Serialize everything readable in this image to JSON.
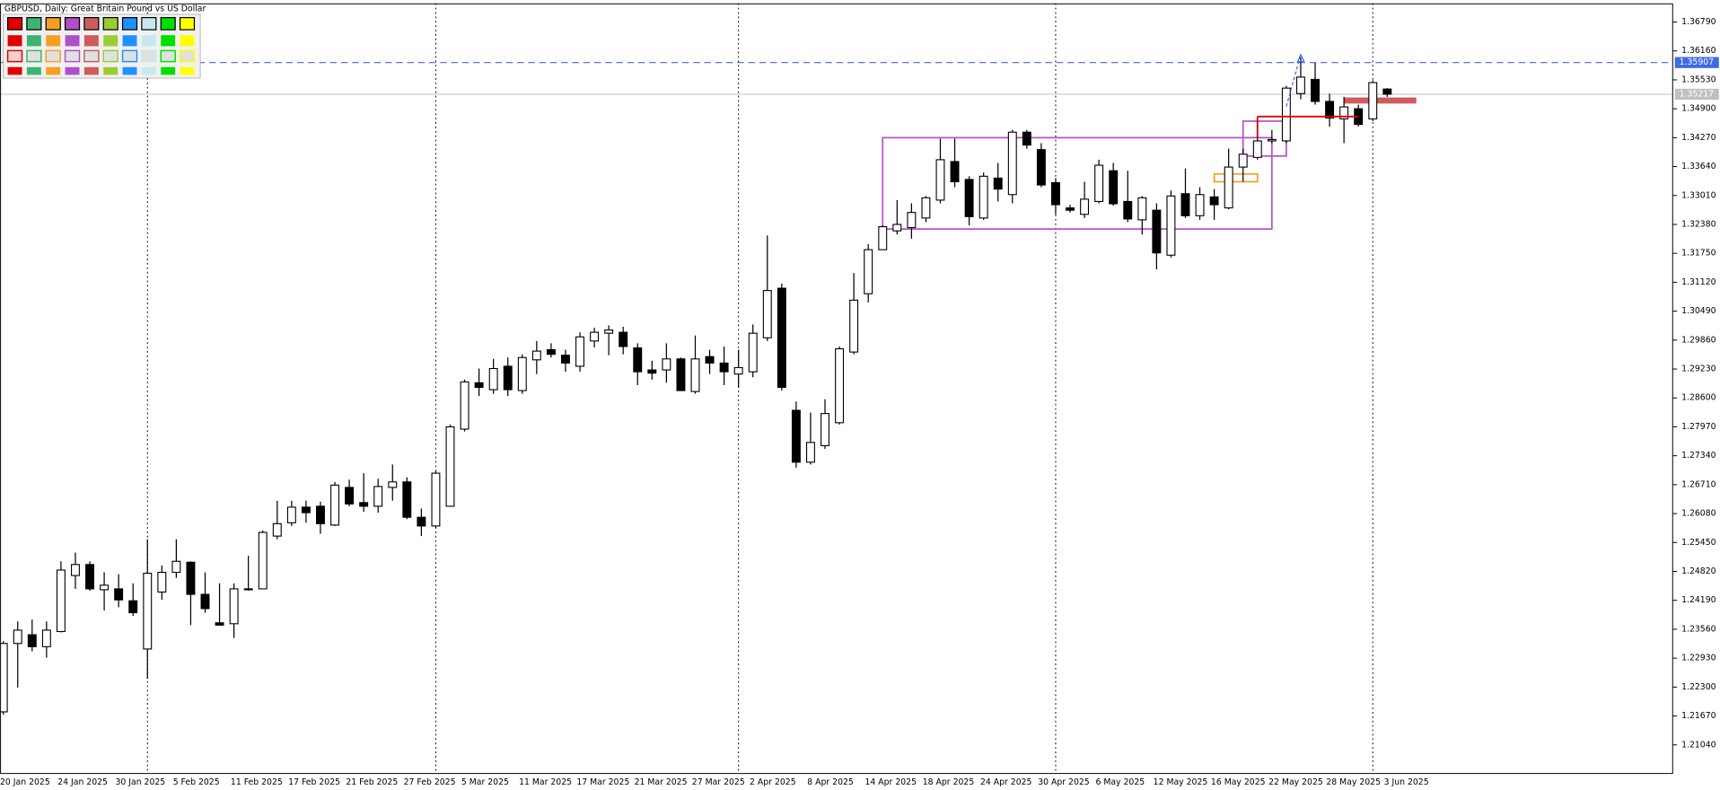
{
  "chart_data": {
    "type": "candlestick",
    "title": "GBPUSD, Daily:  Great Britain Pound vs US Dollar",
    "categories": [
      "20 Jan 2025",
      null,
      null,
      null,
      "24 Jan 2025",
      null,
      null,
      null,
      "30 Jan 2025",
      null,
      null,
      null,
      "5 Feb 2025",
      null,
      null,
      null,
      "11 Feb 2025",
      null,
      null,
      null,
      "17 Feb 2025",
      null,
      null,
      null,
      "21 Feb 2025",
      null,
      null,
      null,
      "27 Feb 2025",
      null,
      null,
      null,
      "5 Mar 2025",
      null,
      null,
      null,
      "11 Mar 2025",
      null,
      null,
      null,
      "17 Mar 2025",
      null,
      null,
      null,
      "21 Mar 2025",
      null,
      null,
      null,
      "27 Mar 2025",
      null,
      null,
      null,
      "2 Apr 2025",
      null,
      null,
      null,
      "8 Apr 2025",
      null,
      null,
      null,
      "14 Apr 2025",
      null,
      null,
      null,
      "18 Apr 2025",
      null,
      null,
      null,
      "24 Apr 2025",
      null,
      null,
      null,
      "30 Apr 2025",
      null,
      null,
      null,
      "6 May 2025",
      null,
      null,
      null,
      "12 May 2025",
      null,
      null,
      null,
      "16 May 2025",
      null,
      null,
      null,
      "22 May 2025",
      null,
      null,
      null,
      "28 May 2025",
      null,
      null,
      null,
      "3 Jun 2025"
    ],
    "open": [
      1.2176,
      1.2325,
      1.2344,
      1.2318,
      1.2351,
      1.2473,
      1.2497,
      1.2442,
      1.2444,
      1.2418,
      1.2313,
      1.2437,
      1.248,
      1.2502,
      1.2432,
      1.237,
      1.2368,
      1.2444,
      1.2444,
      1.2559,
      1.2588,
      1.2622,
      1.2624,
      1.2583,
      1.2665,
      1.2632,
      1.2624,
      1.2665,
      1.2677,
      1.26,
      1.2581,
      1.2624,
      1.2792,
      1.2893,
      1.2878,
      1.2929,
      1.2876,
      1.2943,
      1.2965,
      1.2953,
      1.2929,
      1.2984,
      1.3001,
      1.3003,
      1.2969,
      1.2921,
      1.2921,
      1.2945,
      1.2874,
      1.295,
      1.2936,
      1.2912,
      1.2917,
      1.2991,
      1.3099,
      1.2833,
      1.272,
      1.2756,
      1.2806,
      1.296,
      1.3087,
      1.3183,
      1.3224,
      1.3231,
      1.3252,
      1.3291,
      1.3375,
      1.3336,
      1.3252,
      1.3339,
      1.3303,
      1.3439,
      1.3401,
      1.3329,
      1.3274,
      1.326,
      1.3288,
      1.3355,
      1.3288,
      1.3248,
      1.3269,
      1.3171,
      1.3305,
      1.3257,
      1.3298,
      1.3274,
      1.3363,
      1.3384,
      1.342,
      1.342,
      1.3523,
      1.3554,
      1.3506,
      1.3468,
      1.349,
      1.3468,
      1.3533
    ],
    "high": [
      1.233,
      1.2373,
      1.2377,
      1.2373,
      1.2504,
      1.2523,
      1.2504,
      1.248,
      1.2476,
      1.2456,
      1.2552,
      1.2495,
      1.2552,
      1.2504,
      1.248,
      1.2456,
      1.2456,
      1.2516,
      1.2571,
      1.2636,
      1.2636,
      1.2636,
      1.2634,
      1.2677,
      1.2682,
      1.2696,
      1.2684,
      1.2715,
      1.2687,
      1.2619,
      1.2701,
      1.2802,
      1.29,
      1.2924,
      1.2945,
      1.2948,
      1.2955,
      1.2984,
      1.2979,
      1.2965,
      1.3003,
      1.3013,
      1.3018,
      1.3015,
      1.2979,
      1.2941,
      1.2979,
      1.2948,
      1.2996,
      1.2965,
      1.2972,
      1.2965,
      1.302,
      1.3214,
      1.3109,
      1.2852,
      1.2828,
      1.2857,
      1.2972,
      1.3132,
      1.3195,
      1.3236,
      1.3291,
      1.3284,
      1.33,
      1.3425,
      1.3425,
      1.3343,
      1.3351,
      1.3372,
      1.3444,
      1.3444,
      1.3415,
      1.3339,
      1.3281,
      1.3331,
      1.3379,
      1.3372,
      1.3355,
      1.33,
      1.3284,
      1.3312,
      1.336,
      1.3319,
      1.3315,
      1.3403,
      1.3403,
      1.3437,
      1.3444,
      1.354,
      1.3602,
      1.359,
      1.3523,
      1.3516,
      1.3499,
      1.3552,
      1.3535
    ],
    "low": [
      1.217,
      1.2229,
      1.2308,
      1.2294,
      1.2349,
      1.2444,
      1.244,
      1.2397,
      1.2404,
      1.2385,
      1.2248,
      1.242,
      1.2468,
      1.2365,
      1.2392,
      1.2365,
      1.2337,
      1.244,
      1.2444,
      1.2552,
      1.2581,
      1.2588,
      1.2564,
      1.2581,
      1.2624,
      1.2612,
      1.261,
      1.2636,
      1.2596,
      1.2559,
      1.2576,
      1.2624,
      1.2787,
      1.2864,
      1.2869,
      1.2864,
      1.2869,
      1.2912,
      1.2948,
      1.2917,
      1.2917,
      1.297,
      1.2953,
      1.2955,
      1.2888,
      1.29,
      1.2893,
      1.2876,
      1.2869,
      1.2912,
      1.2888,
      1.2883,
      1.2905,
      1.2984,
      1.2876,
      1.2708,
      1.2715,
      1.2749,
      1.2802,
      1.2955,
      1.3068,
      1.3183,
      1.3216,
      1.3207,
      1.3243,
      1.3284,
      1.3319,
      1.3236,
      1.3248,
      1.3288,
      1.3284,
      1.3403,
      1.3319,
      1.326,
      1.3264,
      1.3252,
      1.3284,
      1.3279,
      1.3243,
      1.3216,
      1.314,
      1.3166,
      1.3252,
      1.3248,
      1.3248,
      1.3271,
      1.3331,
      1.3379,
      1.3415,
      1.3415,
      1.3511,
      1.3499,
      1.3451,
      1.3415,
      1.3451,
      1.3463,
      1.3516
    ],
    "close": [
      1.2325,
      1.2354,
      1.2318,
      1.2354,
      1.2485,
      1.2497,
      1.2444,
      1.2452,
      1.242,
      1.2392,
      1.2478,
      1.248,
      1.2504,
      1.2432,
      1.2401,
      1.2365,
      1.2444,
      1.2442,
      1.2567,
      1.2586,
      1.2622,
      1.261,
      1.2586,
      1.267,
      1.2629,
      1.2624,
      1.2667,
      1.2677,
      1.26,
      1.2581,
      1.2696,
      1.2797,
      1.2895,
      1.2883,
      1.2924,
      1.2878,
      1.2948,
      1.2962,
      1.2955,
      1.2936,
      1.2993,
      1.3003,
      1.3008,
      1.2972,
      1.2917,
      1.2914,
      1.2945,
      1.2876,
      1.2945,
      1.2936,
      1.2917,
      1.2926,
      1.3001,
      1.3094,
      1.2883,
      1.272,
      1.2763,
      1.2826,
      1.2967,
      1.3073,
      1.3183,
      1.3233,
      1.3238,
      1.3264,
      1.3296,
      1.3379,
      1.3331,
      1.3255,
      1.3343,
      1.3315,
      1.3439,
      1.3411,
      1.3324,
      1.3281,
      1.3269,
      1.3293,
      1.3367,
      1.3283,
      1.325,
      1.3296,
      1.3176,
      1.33,
      1.3257,
      1.3303,
      1.3281,
      1.3363,
      1.3391,
      1.342,
      1.3423,
      1.3535,
      1.3559,
      1.3506,
      1.347,
      1.3494,
      1.3456,
      1.3547,
      1.35217
    ],
    "ylim": [
      1.20417,
      1.37198
    ],
    "yticks": [
      {
        "value": 1.3679,
        "label": "1.36790"
      },
      {
        "value": 1.3616,
        "label": "1.36160"
      },
      {
        "value": 1.3553,
        "label": "1.35530"
      },
      {
        "value": 1.349,
        "label": "1.34900"
      },
      {
        "value": 1.3427,
        "label": "1.34270"
      },
      {
        "value": 1.3364,
        "label": "1.33640"
      },
      {
        "value": 1.3301,
        "label": "1.33010"
      },
      {
        "value": 1.3238,
        "label": "1.32380"
      },
      {
        "value": 1.3175,
        "label": "1.31750"
      },
      {
        "value": 1.3112,
        "label": "1.31120"
      },
      {
        "value": 1.3049,
        "label": "1.30490"
      },
      {
        "value": 1.2986,
        "label": "1.29860"
      },
      {
        "value": 1.2923,
        "label": "1.29230"
      },
      {
        "value": 1.286,
        "label": "1.28600"
      },
      {
        "value": 1.2797,
        "label": "1.27970"
      },
      {
        "value": 1.2734,
        "label": "1.27340"
      },
      {
        "value": 1.2671,
        "label": "1.26710"
      },
      {
        "value": 1.2608,
        "label": "1.26080"
      },
      {
        "value": 1.2545,
        "label": "1.25450"
      },
      {
        "value": 1.2482,
        "label": "1.24820"
      },
      {
        "value": 1.2419,
        "label": "1.24190"
      },
      {
        "value": 1.2356,
        "label": "1.23560"
      },
      {
        "value": 1.2293,
        "label": "1.22930"
      },
      {
        "value": 1.223,
        "label": "1.22300"
      },
      {
        "value": 1.2167,
        "label": "1.21670"
      },
      {
        "value": 1.2104,
        "label": "1.21040"
      }
    ],
    "grid": false,
    "bull_color": "#ffffff",
    "bear_color": "#000000",
    "period_separators": [
      10,
      30,
      51,
      73,
      95
    ],
    "hlines": [
      {
        "value": 1.35907,
        "color": "#4169e1",
        "dashed": true
      },
      {
        "value": 1.35217,
        "color": "#c0c0c0",
        "dashed": false
      }
    ],
    "rectangles": [
      {
        "x": [
          61,
          88
        ],
        "y": [
          1.3427,
          1.3228
        ],
        "color": "#b94fc9"
      },
      {
        "x": [
          86,
          89
        ],
        "y": [
          1.3463,
          1.3387
        ],
        "color": "#b94fc9"
      },
      {
        "x": [
          84,
          87
        ],
        "y": [
          1.3348,
          1.3331
        ],
        "color": "#f0a020"
      },
      {
        "x": [
          93,
          98
        ],
        "y": [
          1.3514,
          1.3502
        ],
        "color": "#cd5c5c",
        "filled": true
      }
    ],
    "segments": [
      {
        "x": [
          87,
          94
        ],
        "y": [
          1.3473,
          1.3473
        ],
        "color": "#e00000"
      },
      {
        "x": [
          87,
          87
        ],
        "y": [
          1.3473,
          1.3427
        ],
        "color": "#e00000"
      },
      {
        "x": [
          89,
          90
        ],
        "y": [
          1.3495,
          1.3608
        ],
        "color": "#4169e1",
        "dashed": true
      }
    ]
  }
}
